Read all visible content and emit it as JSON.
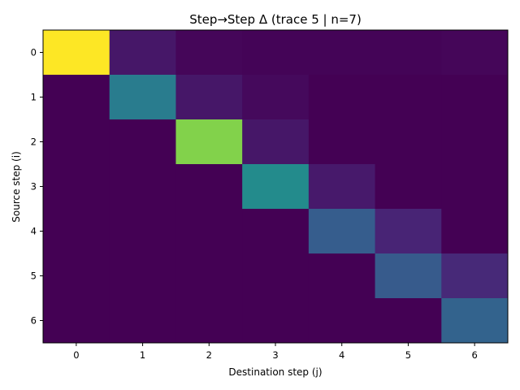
{
  "chart_data": {
    "type": "heatmap",
    "title": "Step→Step Δ (trace 5 | n=7)",
    "xlabel": "Destination step (j)",
    "ylabel": "Source step (i)",
    "x_ticks": [
      "0",
      "1",
      "2",
      "3",
      "4",
      "5",
      "6"
    ],
    "y_ticks": [
      "0",
      "1",
      "2",
      "3",
      "4",
      "5",
      "6"
    ],
    "colormap": "viridis",
    "vmin": 0,
    "vmax": 1,
    "values": [
      [
        1.0,
        0.08,
        0.02,
        0.01,
        0.01,
        0.01,
        0.02
      ],
      [
        0.0,
        0.52,
        0.08,
        0.03,
        0.0,
        0.0,
        0.0
      ],
      [
        0.0,
        0.0,
        0.86,
        0.08,
        0.0,
        0.0,
        0.0
      ],
      [
        0.0,
        0.0,
        0.0,
        0.6,
        0.09,
        0.0,
        0.0
      ],
      [
        0.0,
        0.0,
        0.0,
        0.0,
        0.37,
        0.13,
        0.0
      ],
      [
        0.0,
        0.0,
        0.0,
        0.0,
        0.0,
        0.36,
        0.15
      ],
      [
        0.0,
        0.0,
        0.0,
        0.0,
        0.0,
        0.0,
        0.4
      ]
    ],
    "grid": false
  }
}
